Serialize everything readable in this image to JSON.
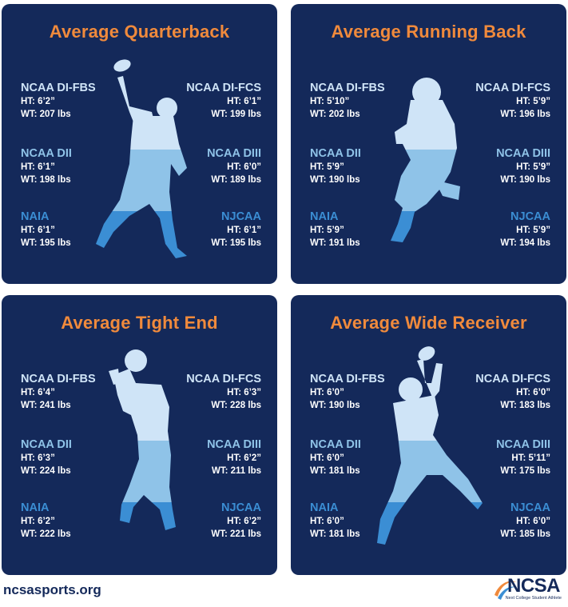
{
  "colors": {
    "panel_bg": "#14295a",
    "title": "#f08a3c",
    "tier_top": "#cfe4f7",
    "tier_mid": "#8fc3e8",
    "tier_bottom": "#3b8ed4",
    "values": "#ffffff"
  },
  "panels": [
    {
      "title": "Average Quarterback",
      "silhouette": "quarterback-throwing-silhouette",
      "stats": [
        {
          "level": "NCAA DI-FBS",
          "ht": "HT: 6’2”",
          "wt": "WT: 207 lbs"
        },
        {
          "level": "NCAA DI-FCS",
          "ht": "HT: 6’1”",
          "wt": "WT: 199 lbs"
        },
        {
          "level": "NCAA DII",
          "ht": "HT: 6’1”",
          "wt": "WT: 198 lbs"
        },
        {
          "level": "NCAA DIII",
          "ht": "HT: 6’0”",
          "wt": "WT: 189 lbs"
        },
        {
          "level": "NAIA",
          "ht": "HT: 6’1”",
          "wt": "WT: 195 lbs"
        },
        {
          "level": "NJCAA",
          "ht": "HT: 6’1”",
          "wt": "WT: 195 lbs"
        }
      ]
    },
    {
      "title": "Average Running Back",
      "silhouette": "running-back-silhouette",
      "stats": [
        {
          "level": "NCAA DI-FBS",
          "ht": "HT: 5’10”",
          "wt": "WT: 202 lbs"
        },
        {
          "level": "NCAA DI-FCS",
          "ht": "HT: 5’9”",
          "wt": "WT: 196 lbs"
        },
        {
          "level": "NCAA DII",
          "ht": "HT: 5’9”",
          "wt": "WT: 190 lbs"
        },
        {
          "level": "NCAA DIII",
          "ht": "HT: 5’9”",
          "wt": "WT: 190 lbs"
        },
        {
          "level": "NAIA",
          "ht": "HT: 5’9”",
          "wt": "WT: 191 lbs"
        },
        {
          "level": "NJCAA",
          "ht": "HT: 5’9”",
          "wt": "WT: 194 lbs"
        }
      ]
    },
    {
      "title": "Average Tight End",
      "silhouette": "tight-end-silhouette",
      "stats": [
        {
          "level": "NCAA DI-FBS",
          "ht": "HT: 6’4”",
          "wt": "WT: 241 lbs"
        },
        {
          "level": "NCAA DI-FCS",
          "ht": "HT: 6’3”",
          "wt": "WT: 228 lbs"
        },
        {
          "level": "NCAA DII",
          "ht": "HT: 6’3”",
          "wt": "WT: 224 lbs"
        },
        {
          "level": "NCAA DIII",
          "ht": "HT: 6’2”",
          "wt": "WT: 211 lbs"
        },
        {
          "level": "NAIA",
          "ht": "HT: 6’2”",
          "wt": "WT: 222 lbs"
        },
        {
          "level": "NJCAA",
          "ht": "HT: 6’2”",
          "wt": "WT: 221 lbs"
        }
      ]
    },
    {
      "title": "Average Wide Receiver",
      "silhouette": "wide-receiver-catching-silhouette",
      "stats": [
        {
          "level": "NCAA DI-FBS",
          "ht": "HT: 6’0”",
          "wt": "WT: 190 lbs"
        },
        {
          "level": "NCAA DI-FCS",
          "ht": "HT: 6’0”",
          "wt": "WT: 183 lbs"
        },
        {
          "level": "NCAA DII",
          "ht": "HT: 6’0”",
          "wt": "WT: 181 lbs"
        },
        {
          "level": "NCAA DIII",
          "ht": "HT: 5’11”",
          "wt": "WT: 175 lbs"
        },
        {
          "level": "NAIA",
          "ht": "HT: 6’0”",
          "wt": "WT: 181 lbs"
        },
        {
          "level": "NJCAA",
          "ht": "HT: 6’0”",
          "wt": "WT: 185 lbs"
        }
      ]
    }
  ],
  "footer": {
    "url": "ncsasports.org",
    "logo_text": "NCSA",
    "logo_tagline": "Next College Student Athlete",
    "logo_icon": "ncsa-swoosh-icon"
  }
}
